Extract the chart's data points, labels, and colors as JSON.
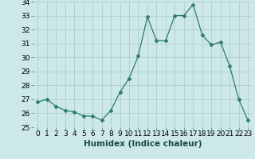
{
  "x": [
    0,
    1,
    2,
    3,
    4,
    5,
    6,
    7,
    8,
    9,
    10,
    11,
    12,
    13,
    14,
    15,
    16,
    17,
    18,
    19,
    20,
    21,
    22,
    23
  ],
  "y": [
    26.8,
    27.0,
    26.5,
    26.2,
    26.1,
    25.8,
    25.8,
    25.5,
    26.2,
    27.5,
    28.5,
    30.1,
    32.9,
    31.2,
    31.2,
    33.0,
    33.0,
    33.8,
    31.6,
    30.9,
    31.1,
    29.4,
    27.0,
    25.5
  ],
  "line_color": "#2d7d6e",
  "marker": "D",
  "marker_size": 2.5,
  "bg_color": "#cce8e8",
  "grid_color": "#b0cccc",
  "xlabel": "Humidex (Indice chaleur)",
  "ylim": [
    25,
    34
  ],
  "xlim": [
    -0.5,
    23.5
  ],
  "yticks": [
    25,
    26,
    27,
    28,
    29,
    30,
    31,
    32,
    33,
    34
  ],
  "xtick_labels": [
    "0",
    "1",
    "2",
    "3",
    "4",
    "5",
    "6",
    "7",
    "8",
    "9",
    "10",
    "11",
    "12",
    "13",
    "14",
    "15",
    "16",
    "17",
    "18",
    "19",
    "20",
    "21",
    "22",
    "23"
  ],
  "tick_fontsize": 6.5,
  "xlabel_fontsize": 7.5
}
